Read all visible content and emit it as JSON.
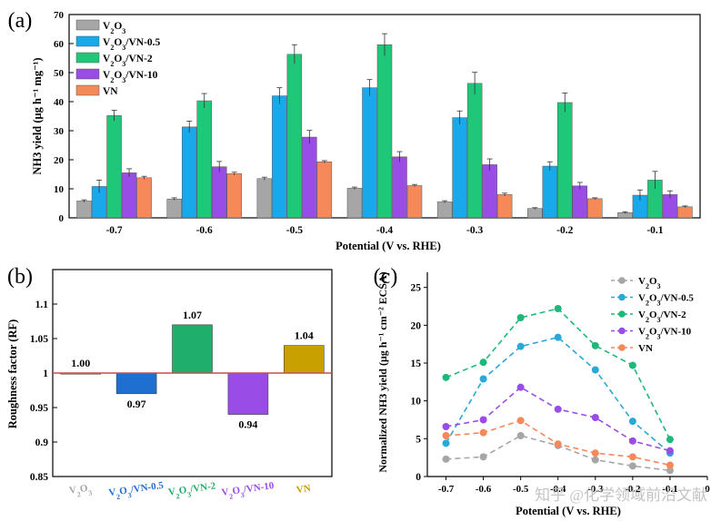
{
  "watermark": "知乎 @化学领域前沿文献",
  "chart_data": [
    {
      "panel_label": "(a)",
      "type": "bar",
      "title": "",
      "xlabel": "Potential (V vs. RHE)",
      "ylabel": "NH3 yield (μg h⁻¹ mg⁻¹)",
      "ylim": [
        0,
        70
      ],
      "yticks": [
        0,
        10,
        20,
        30,
        40,
        50,
        60,
        70
      ],
      "categories": [
        "-0.7",
        "-0.6",
        "-0.5",
        "-0.4",
        "-0.3",
        "-0.2",
        "-0.1"
      ],
      "legend_position": "top-left",
      "series": [
        {
          "name": "V2O3",
          "color": "#a6a6a6",
          "values": [
            5.8,
            6.5,
            13.5,
            10.2,
            5.5,
            3.2,
            1.8
          ],
          "errors": [
            0.4,
            0.4,
            0.5,
            0.4,
            0.4,
            0.3,
            0.3
          ]
        },
        {
          "name": "V2O3/VN-0.5",
          "color": "#17a9ec",
          "values": [
            10.8,
            31.3,
            42.0,
            44.8,
            34.5,
            17.8,
            7.8
          ],
          "errors": [
            2.2,
            2.0,
            2.8,
            2.8,
            2.3,
            1.5,
            1.8
          ]
        },
        {
          "name": "V2O3/VN-2",
          "color": "#1fc879",
          "values": [
            35.2,
            40.3,
            56.3,
            59.6,
            46.3,
            39.7,
            13.0
          ],
          "errors": [
            1.8,
            2.5,
            3.3,
            3.8,
            3.8,
            3.3,
            3.0
          ]
        },
        {
          "name": "V2O3/VN-10",
          "color": "#9a4de6",
          "values": [
            15.5,
            17.6,
            27.8,
            21.0,
            18.3,
            11.0,
            8.0
          ],
          "errors": [
            1.4,
            1.8,
            2.3,
            1.8,
            2.0,
            1.2,
            1.3
          ]
        },
        {
          "name": "VN",
          "color": "#f5895a",
          "values": [
            13.8,
            15.2,
            19.3,
            11.1,
            8.0,
            6.6,
            3.8
          ],
          "errors": [
            0.5,
            0.5,
            0.4,
            0.4,
            0.5,
            0.3,
            0.3
          ]
        }
      ]
    },
    {
      "panel_label": "(b)",
      "type": "bar",
      "title": "",
      "xlabel": "",
      "ylabel": "Roughness factor (RF)",
      "ylim": [
        0.85,
        1.15
      ],
      "yticks": [
        0.85,
        0.9,
        0.95,
        1.0,
        1.05,
        1.1
      ],
      "ytick_labels": [
        "0.85",
        "0.9",
        "0.95",
        "1",
        "1.05",
        "1.1"
      ],
      "baseline": 1.0,
      "baseline_color": "#c0504d",
      "categories": [
        "V2O3",
        "V2O3/VN-0.5",
        "V2O3/VN-2",
        "V2O3/VN-10",
        "VN"
      ],
      "category_colors": [
        "#a6a6a6",
        "#1f6fd1",
        "#1fae6b",
        "#9a4de6",
        "#c8a000"
      ],
      "values": [
        1.0,
        0.97,
        1.07,
        0.94,
        1.04
      ],
      "value_labels": [
        "1.00",
        "0.97",
        "1.07",
        "0.94",
        "1.04"
      ]
    },
    {
      "panel_label": "(c)",
      "type": "line",
      "title": "",
      "xlabel": "Potential (V vs. RHE)",
      "ylabel": "Normalized NH3 yield (μg h⁻¹ cm⁻² ECSA)",
      "xlim": [
        -0.75,
        0.0
      ],
      "ylim": [
        0,
        27
      ],
      "xticks": [
        -0.7,
        -0.6,
        -0.5,
        -0.4,
        -0.3,
        -0.2,
        -0.1,
        0
      ],
      "xtick_labels": [
        "-0.7",
        "-0.6",
        "-0.5",
        "-0.4",
        "-0.3",
        "-0.2",
        "-0.1",
        "0"
      ],
      "yticks": [
        0,
        5,
        10,
        15,
        20,
        25
      ],
      "x": [
        -0.7,
        -0.6,
        -0.5,
        -0.4,
        -0.3,
        -0.2,
        -0.1
      ],
      "legend_position": "top-right",
      "series": [
        {
          "name": "V2O3",
          "color": "#a6a6a6",
          "values": [
            2.3,
            2.6,
            5.4,
            4.1,
            2.2,
            1.4,
            0.8
          ]
        },
        {
          "name": "V2O3/VN-0.5",
          "color": "#2aa8d8",
          "values": [
            4.4,
            12.9,
            17.2,
            18.4,
            14.1,
            7.3,
            3.1
          ]
        },
        {
          "name": "V2O3/VN-2",
          "color": "#1fb87a",
          "values": [
            13.1,
            15.1,
            21.0,
            22.2,
            17.3,
            14.7,
            4.9
          ]
        },
        {
          "name": "V2O3/VN-10",
          "color": "#9a4de6",
          "values": [
            6.6,
            7.5,
            11.8,
            8.9,
            7.8,
            4.7,
            3.4
          ]
        },
        {
          "name": "VN",
          "color": "#f5895a",
          "values": [
            5.4,
            5.8,
            7.4,
            4.3,
            3.1,
            2.6,
            1.5
          ]
        }
      ]
    }
  ]
}
